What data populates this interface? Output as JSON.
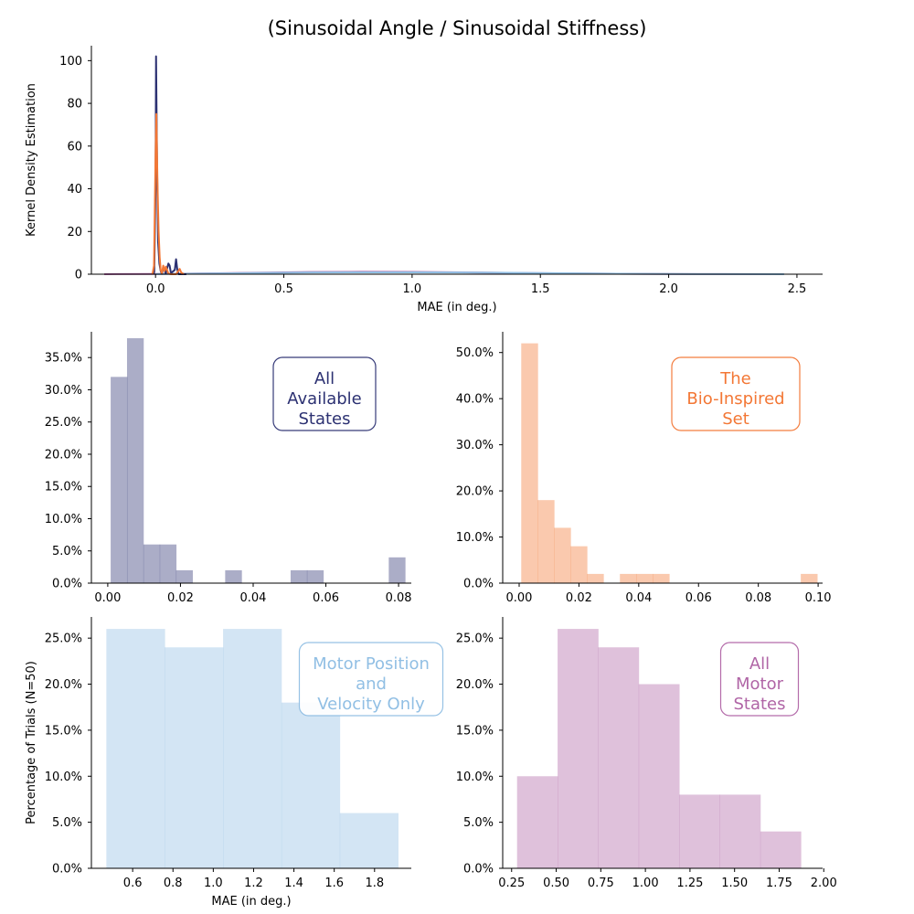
{
  "figure": {
    "title": "(Sinusoidal Angle / Sinusoidal Stiffness)"
  },
  "colors": {
    "all_states": "#2c3172",
    "bio_inspired": "#f37735",
    "motor_pos_vel": "#91bfe4",
    "all_motor": "#b065a6",
    "axis": "#000000"
  },
  "chart_data": [
    {
      "id": "kde",
      "type": "line",
      "title": "(Sinusoidal Angle / Sinusoidal Stiffness)",
      "xlabel": "MAE (in deg.)",
      "ylabel": "Kernel Density Estimation",
      "xlim": [
        -0.25,
        2.6
      ],
      "ylim": [
        0,
        107
      ],
      "xticks": [
        0.0,
        0.5,
        1.0,
        1.5,
        2.0,
        2.5
      ],
      "xtick_labels": [
        "0.0",
        "0.5",
        "1.0",
        "1.5",
        "2.0",
        "2.5"
      ],
      "yticks": [
        0,
        20,
        40,
        60,
        80,
        100
      ],
      "ytick_labels": [
        "0",
        "20",
        "40",
        "60",
        "80",
        "100"
      ],
      "series": [
        {
          "color_key": "all_motor",
          "points": [
            [
              -0.2,
              0.02
            ],
            [
              0.0,
              0.12
            ],
            [
              0.2,
              0.35
            ],
            [
              0.4,
              0.7
            ],
            [
              0.6,
              1.0
            ],
            [
              0.8,
              1.12
            ],
            [
              1.0,
              1.05
            ],
            [
              1.2,
              0.85
            ],
            [
              1.4,
              0.6
            ],
            [
              1.6,
              0.38
            ],
            [
              1.8,
              0.2
            ],
            [
              2.0,
              0.1
            ],
            [
              2.2,
              0.04
            ],
            [
              2.4,
              0.01
            ]
          ]
        },
        {
          "color_key": "motor_pos_vel",
          "points": [
            [
              0.0,
              0.05
            ],
            [
              0.2,
              0.3
            ],
            [
              0.4,
              0.6
            ],
            [
              0.6,
              0.78
            ],
            [
              0.8,
              0.85
            ],
            [
              1.0,
              0.83
            ],
            [
              1.2,
              0.78
            ],
            [
              1.4,
              0.62
            ],
            [
              1.6,
              0.42
            ],
            [
              1.8,
              0.22
            ],
            [
              2.0,
              0.1
            ],
            [
              2.2,
              0.04
            ],
            [
              2.45,
              0.0
            ]
          ]
        },
        {
          "color_key": "all_states",
          "points": [
            [
              -0.01,
              0
            ],
            [
              -0.005,
              1
            ],
            [
              0.0,
              40
            ],
            [
              0.002,
              102
            ],
            [
              0.006,
              50
            ],
            [
              0.01,
              15
            ],
            [
              0.015,
              5
            ],
            [
              0.02,
              1.5
            ],
            [
              0.025,
              0.2
            ],
            [
              0.03,
              3
            ],
            [
              0.035,
              2
            ],
            [
              0.04,
              0.3
            ],
            [
              0.05,
              5
            ],
            [
              0.055,
              4
            ],
            [
              0.06,
              0.5
            ],
            [
              0.075,
              2
            ],
            [
              0.08,
              7
            ],
            [
              0.085,
              2
            ],
            [
              0.09,
              0
            ],
            [
              0.12,
              0
            ]
          ]
        },
        {
          "color_key": "bio_inspired",
          "points": [
            [
              -0.012,
              0
            ],
            [
              -0.006,
              4
            ],
            [
              0.0,
              55
            ],
            [
              0.003,
              75
            ],
            [
              0.008,
              40
            ],
            [
              0.012,
              20
            ],
            [
              0.016,
              8
            ],
            [
              0.02,
              2
            ],
            [
              0.025,
              0.5
            ],
            [
              0.03,
              4
            ],
            [
              0.035,
              1.5
            ],
            [
              0.04,
              3.5
            ],
            [
              0.045,
              2
            ],
            [
              0.05,
              0.3
            ],
            [
              0.06,
              0
            ],
            [
              0.08,
              0
            ],
            [
              0.094,
              2.5
            ],
            [
              0.1,
              0.8
            ],
            [
              0.11,
              0
            ]
          ]
        }
      ]
    },
    {
      "id": "hist_all_states",
      "type": "bar",
      "label": "All\nAvailable\nStates",
      "color_key": "all_states",
      "xlim": [
        -0.0045,
        0.0835
      ],
      "ylim": [
        0,
        0.39
      ],
      "bin_width": 0.0045,
      "bins": [
        [
          0.0008,
          0.32
        ],
        [
          0.0053,
          0.38
        ],
        [
          0.0098,
          0.06
        ],
        [
          0.0143,
          0.06
        ],
        [
          0.0188,
          0.02
        ],
        [
          0.0233,
          0.0
        ],
        [
          0.0278,
          0.0
        ],
        [
          0.0323,
          0.02
        ],
        [
          0.0368,
          0.0
        ],
        [
          0.0413,
          0.0
        ],
        [
          0.0458,
          0.0
        ],
        [
          0.0503,
          0.02
        ],
        [
          0.0548,
          0.02
        ],
        [
          0.0593,
          0.0
        ],
        [
          0.0638,
          0.0
        ],
        [
          0.0683,
          0.0
        ],
        [
          0.0728,
          0.0
        ],
        [
          0.0773,
          0.04
        ]
      ],
      "xticks": [
        0.0,
        0.02,
        0.04,
        0.06,
        0.08
      ],
      "xtick_labels": [
        "0.00",
        "0.02",
        "0.04",
        "0.06",
        "0.08"
      ],
      "yticks": [
        0.0,
        0.05,
        0.1,
        0.15,
        0.2,
        0.25,
        0.3,
        0.35
      ],
      "ytick_labels": [
        "0.0%",
        "5.0%",
        "10.0%",
        "15.0%",
        "20.0%",
        "25.0%",
        "30.0%",
        "35.0%"
      ]
    },
    {
      "id": "hist_bio_inspired",
      "type": "bar",
      "label": "The\nBio-Inspired\nSet",
      "color_key": "bio_inspired",
      "xlim": [
        -0.0055,
        0.1015
      ],
      "ylim": [
        0,
        0.545
      ],
      "bin_width": 0.0055,
      "bins": [
        [
          0.0007,
          0.52
        ],
        [
          0.0062,
          0.18
        ],
        [
          0.0117,
          0.12
        ],
        [
          0.0172,
          0.08
        ],
        [
          0.0227,
          0.02
        ],
        [
          0.0282,
          0.0
        ],
        [
          0.0337,
          0.02
        ],
        [
          0.0392,
          0.02
        ],
        [
          0.0447,
          0.02
        ],
        [
          0.0502,
          0.0
        ],
        [
          0.0557,
          0.0
        ],
        [
          0.0612,
          0.0
        ],
        [
          0.0667,
          0.0
        ],
        [
          0.0722,
          0.0
        ],
        [
          0.0777,
          0.0
        ],
        [
          0.0832,
          0.0
        ],
        [
          0.0887,
          0.0
        ],
        [
          0.0942,
          0.02
        ]
      ],
      "xticks": [
        0.0,
        0.02,
        0.04,
        0.06,
        0.08,
        0.1
      ],
      "xtick_labels": [
        "0.00",
        "0.02",
        "0.04",
        "0.06",
        "0.08",
        "0.10"
      ],
      "yticks": [
        0.0,
        0.1,
        0.2,
        0.3,
        0.4,
        0.5
      ],
      "ytick_labels": [
        "0.0%",
        "10.0%",
        "20.0%",
        "30.0%",
        "40.0%",
        "50.0%"
      ]
    },
    {
      "id": "hist_motor_pos_vel",
      "type": "bar",
      "label": "Motor Position\nand\nVelocity Only",
      "color_key": "motor_pos_vel",
      "xlabel": "MAE (in deg.)",
      "ylabel": "Percentage of Trials (N=50)",
      "xlim": [
        0.3953,
        1.9823
      ],
      "ylim": [
        0,
        0.273
      ],
      "bin_width": 0.2895,
      "bins": [
        [
          0.4695,
          0.26
        ],
        [
          0.759,
          0.24
        ],
        [
          1.0485,
          0.26
        ],
        [
          1.338,
          0.18
        ],
        [
          1.6275,
          0.06
        ]
      ],
      "xticks": [
        0.6,
        0.8,
        1.0,
        1.2,
        1.4,
        1.6,
        1.8
      ],
      "xtick_labels": [
        "0.6",
        "0.8",
        "1.0",
        "1.2",
        "1.4",
        "1.6",
        "1.8"
      ],
      "yticks": [
        0.0,
        0.05,
        0.1,
        0.15,
        0.2,
        0.25
      ],
      "ytick_labels": [
        "0.0%",
        "5.0%",
        "10.0%",
        "15.0%",
        "20.0%",
        "25.0%"
      ]
    },
    {
      "id": "hist_all_motor",
      "type": "bar",
      "label": "All\nMotor\nStates",
      "color_key": "all_motor",
      "xlim": [
        0.2,
        1.9935
      ],
      "ylim": [
        0,
        0.273
      ],
      "bin_width": 0.2273,
      "bins": [
        [
          0.2805,
          0.1
        ],
        [
          0.5078,
          0.26
        ],
        [
          0.7351,
          0.24
        ],
        [
          0.9624,
          0.2
        ],
        [
          1.1897,
          0.08
        ],
        [
          1.417,
          0.08
        ],
        [
          1.6443,
          0.04
        ]
      ],
      "xticks": [
        0.25,
        0.5,
        0.75,
        1.0,
        1.25,
        1.5,
        1.75,
        2.0
      ],
      "xtick_labels": [
        "0.25",
        "0.50",
        "0.75",
        "1.00",
        "1.25",
        "1.50",
        "1.75",
        "2.00"
      ],
      "yticks": [
        0.0,
        0.05,
        0.1,
        0.15,
        0.2,
        0.25
      ],
      "ytick_labels": [
        "0.0%",
        "5.0%",
        "10.0%",
        "15.0%",
        "20.0%",
        "25.0%"
      ]
    }
  ]
}
